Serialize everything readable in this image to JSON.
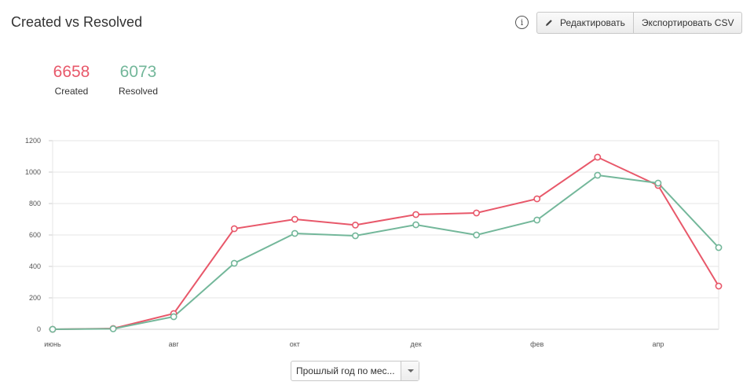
{
  "title": "Created vs Resolved",
  "toolbar": {
    "info_icon": "info-icon",
    "edit_label": "Редактировать",
    "export_label": "Экспортировать CSV"
  },
  "stats": {
    "created": {
      "value": "6658",
      "label": "Created",
      "color": "#e8586a"
    },
    "resolved": {
      "value": "6073",
      "label": "Resolved",
      "color": "#73b79a"
    }
  },
  "period_select": {
    "value": "Прошлый год по мес..."
  },
  "chart_data": {
    "type": "line",
    "x_tick_labels": [
      "июнь",
      "авг",
      "окт",
      "дек",
      "фев",
      "апр"
    ],
    "x_tick_positions": [
      0,
      2,
      4,
      6,
      8,
      10
    ],
    "y_ticks": [
      0,
      200,
      400,
      600,
      800,
      1000,
      1200
    ],
    "ylim": [
      0,
      1200
    ],
    "grid": true,
    "series": [
      {
        "name": "Created",
        "color": "#e8586a",
        "values": [
          0,
          5,
          100,
          640,
          700,
          663,
          730,
          740,
          830,
          1095,
          915,
          275
        ]
      },
      {
        "name": "Resolved",
        "color": "#73b79a",
        "values": [
          0,
          3,
          80,
          420,
          610,
          595,
          665,
          600,
          695,
          980,
          930,
          520
        ]
      }
    ]
  }
}
